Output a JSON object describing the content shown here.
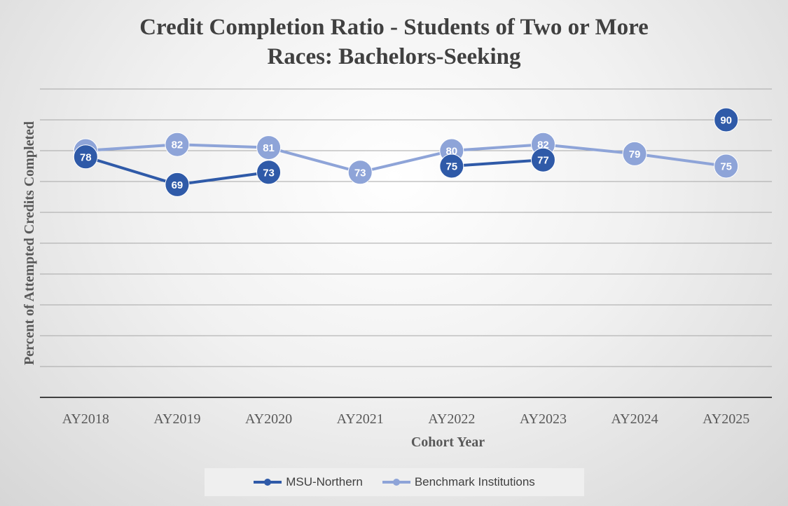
{
  "chart_data": {
    "type": "line",
    "title_lines": [
      "Credit Completion Ratio - Students of  Two or More",
      "Races: Bachelors-Seeking"
    ],
    "xlabel": "Cohort Year",
    "ylabel": "Percent of  Attempted Credits Completed",
    "categories": [
      "AY2018",
      "AY2019",
      "AY2020",
      "AY2021",
      "AY2022",
      "AY2023",
      "AY2024",
      "AY2025"
    ],
    "ylim": [
      0,
      100
    ],
    "ystep": 10,
    "grid": true,
    "legend_position": "bottom",
    "series": [
      {
        "name": "MSU-Northern",
        "color": "#2f5aa8",
        "values": [
          78,
          69,
          73,
          null,
          75,
          77,
          null,
          90
        ]
      },
      {
        "name": "Benchmark Institutions",
        "color": "#8ea4d8",
        "values": [
          80,
          82,
          81,
          73,
          80,
          82,
          79,
          75
        ]
      }
    ]
  }
}
